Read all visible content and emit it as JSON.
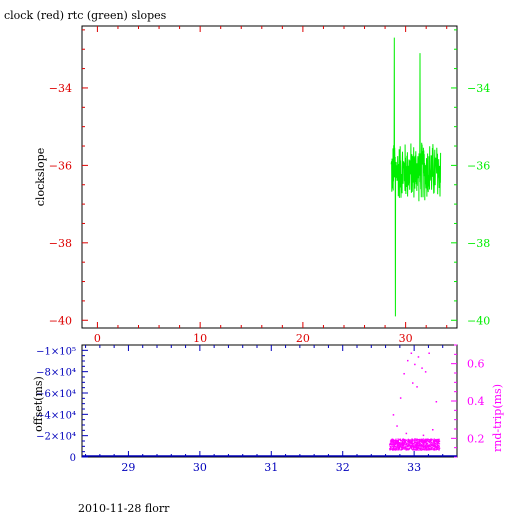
{
  "title": "clock (red) rtc (green) slopes",
  "footer": "2010-11-28 florr",
  "colors": {
    "red": "#dd0000",
    "green": "#00ee00",
    "blue": "#0000bb",
    "magenta": "#ff00ff",
    "frame": "#000000"
  },
  "chart_data": [
    {
      "type": "line",
      "title": "clock (red) rtc (green) slopes",
      "ylabel": "clockslope",
      "xlim": [
        -1.5,
        35.0
      ],
      "ylim": [
        -40.2,
        -32.4
      ],
      "x_ticks": [
        0,
        10,
        20,
        30
      ],
      "y_ticks_left": [
        -34,
        -36,
        -38,
        -40
      ],
      "y_ticks_right": [
        -34,
        -36,
        -38,
        -40
      ],
      "grid": false,
      "series": [
        {
          "name": "rtc",
          "color": "green",
          "x_range": [
            28.6,
            33.4
          ],
          "y_center": -36.15,
          "y_spread": 0.45,
          "y_min": -39.9,
          "y_max": -32.7,
          "spikes": [
            {
              "x": 28.9,
              "y": -32.7
            },
            {
              "x": 29.0,
              "y": -39.9
            },
            {
              "x": 31.4,
              "y": -33.1
            }
          ]
        }
      ]
    },
    {
      "type": "scatter",
      "ylabel_left": "offset(ms)",
      "ylabel_right": "rnd-trip(ms)",
      "xlim": [
        28.35,
        33.6
      ],
      "x_ticks": [
        29,
        30,
        31,
        32,
        33
      ],
      "ylim_left": [
        0,
        -105000
      ],
      "yticks_left": [
        {
          "value": 0,
          "label": "0"
        },
        {
          "value": -20000,
          "label": "−2×10⁴"
        },
        {
          "value": -40000,
          "label": "−4×10⁴"
        },
        {
          "value": -60000,
          "label": "−6×10⁴"
        },
        {
          "value": -80000,
          "label": "−8×10⁴"
        },
        {
          "value": -100000,
          "label": "−1×10⁵"
        }
      ],
      "ylim_right": [
        0.1,
        0.7
      ],
      "yticks_right": [
        0.2,
        0.4,
        0.6
      ],
      "series": [
        {
          "name": "offset",
          "color": "blue",
          "x_range": [
            28.35,
            33.6
          ],
          "y_value": 0
        },
        {
          "name": "rnd-trip",
          "color": "magenta",
          "x_range": [
            32.65,
            33.35
          ],
          "y_band": [
            0.14,
            0.2
          ],
          "outliers": [
            {
              "x": 32.9,
              "y": 0.62
            },
            {
              "x": 32.95,
              "y": 0.66
            },
            {
              "x": 33.0,
              "y": 0.6
            },
            {
              "x": 33.05,
              "y": 0.64
            },
            {
              "x": 33.1,
              "y": 0.58
            },
            {
              "x": 32.85,
              "y": 0.55
            },
            {
              "x": 32.97,
              "y": 0.5
            },
            {
              "x": 32.8,
              "y": 0.42
            },
            {
              "x": 32.7,
              "y": 0.33
            },
            {
              "x": 33.03,
              "y": 0.48
            },
            {
              "x": 33.15,
              "y": 0.56
            },
            {
              "x": 33.2,
              "y": 0.66
            },
            {
              "x": 33.3,
              "y": 0.4
            },
            {
              "x": 32.75,
              "y": 0.27
            },
            {
              "x": 32.88,
              "y": 0.23
            },
            {
              "x": 33.25,
              "y": 0.25
            },
            {
              "x": 33.12,
              "y": 0.22
            }
          ]
        }
      ]
    }
  ]
}
